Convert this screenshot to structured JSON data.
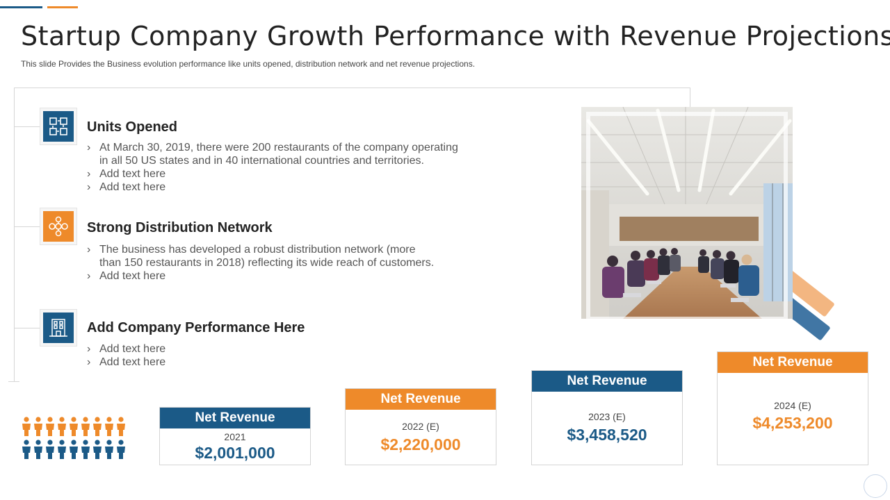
{
  "header": {
    "title": "Startup Company Growth Performance with Revenue Projections",
    "subtitle": "This slide Provides the Business evolution performance like units opened, distribution network and net revenue projections."
  },
  "colors": {
    "brand_blue": "#1b5a87",
    "brand_orange": "#ee8a2a"
  },
  "features": [
    {
      "icon": "units-cubes-icon",
      "title": "Units Opened",
      "bullets": [
        "At March 30, 2019, there were 200 restaurants  of the company operating",
        "in all 50 US states and in 40 international countries and territories.",
        "Add text here",
        "Add text here"
      ]
    },
    {
      "icon": "network-people-icon",
      "title": "Strong Distribution Network",
      "bullets": [
        "The business has developed a robust distribution network (more",
        "than 150 restaurants  in 2018) reflecting its wide reach of customers.",
        "Add text here"
      ]
    },
    {
      "icon": "company-building-icon",
      "title": "Add Company Performance Here",
      "bullets": [
        "Add text here",
        "Add text here"
      ]
    }
  ],
  "photo": {
    "icon": "meeting-room-photo"
  },
  "people_icon": "people-crowd-icon",
  "revenue": [
    {
      "label": "Net Revenue",
      "year": "2021",
      "value": "$2,001,000"
    },
    {
      "label": "Net Revenue",
      "year": "2022 (E)",
      "value": "$2,220,000"
    },
    {
      "label": "Net Revenue",
      "year": "2023 (E)",
      "value": "$3,458,520"
    },
    {
      "label": "Net Revenue",
      "year": "2024 (E)",
      "value": "$4,253,200"
    }
  ]
}
